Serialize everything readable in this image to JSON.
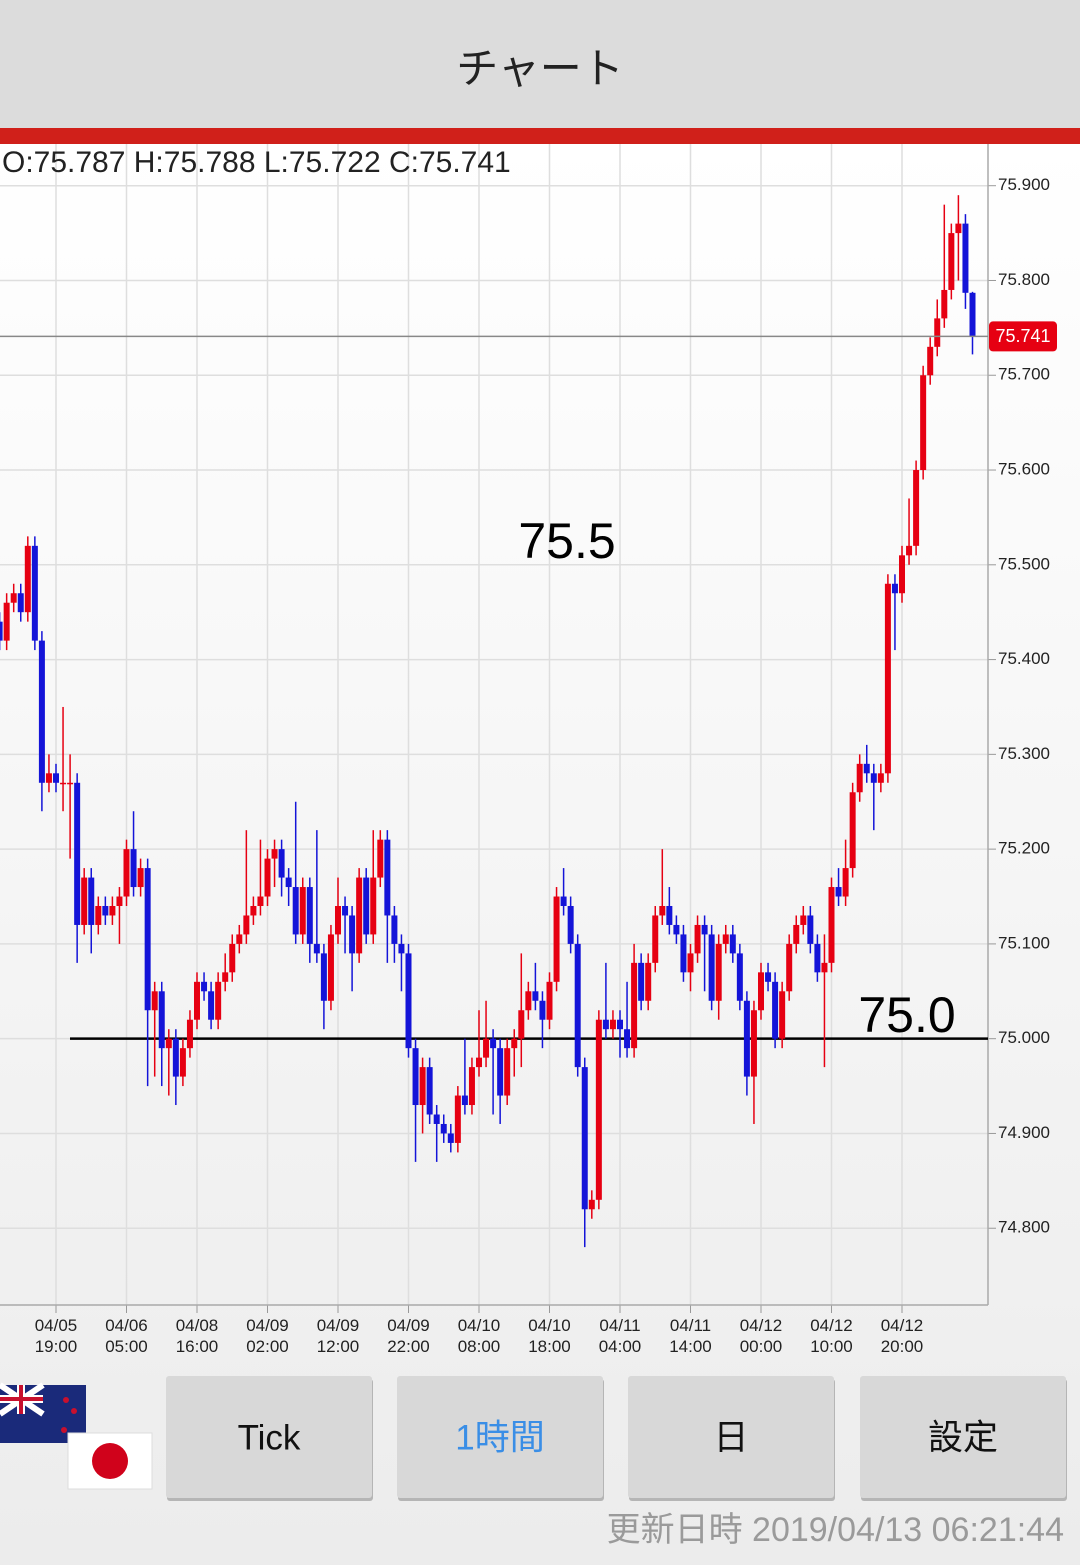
{
  "header": {
    "title": "チャート"
  },
  "chart_data": {
    "type": "candlestick",
    "info": "O:75.787 H:75.788 L:75.722 C:75.741",
    "xticks": [
      {
        "value": 8,
        "label": "04/05 19:00"
      },
      {
        "value": 18,
        "label": "04/06 05:00"
      },
      {
        "value": 28,
        "label": "04/08 16:00"
      },
      {
        "value": 38,
        "label": "04/09 02:00"
      },
      {
        "value": 48,
        "label": "04/09 12:00"
      },
      {
        "value": 58,
        "label": "04/09 22:00"
      },
      {
        "value": 68,
        "label": "04/10 08:00"
      },
      {
        "value": 78,
        "label": "04/10 18:00"
      },
      {
        "value": 88,
        "label": "04/11 04:00"
      },
      {
        "value": 98,
        "label": "04/11 14:00"
      },
      {
        "value": 108,
        "label": "04/12 00:00"
      },
      {
        "value": 118,
        "label": "04/12 10:00"
      },
      {
        "value": 128,
        "label": "04/12 20:00"
      }
    ],
    "open": [
      75.44,
      75.42,
      75.46,
      75.47,
      75.45,
      75.52,
      75.42,
      75.27,
      75.28,
      75.27,
      75.27,
      75.27,
      75.12,
      75.17,
      75.12,
      75.14,
      75.13,
      75.14,
      75.15,
      75.2,
      75.16,
      75.18,
      75.03,
      75.05,
      74.99,
      75.0,
      74.96,
      74.99,
      75.02,
      75.06,
      75.05,
      75.02,
      75.06,
      75.07,
      75.1,
      75.11,
      75.13,
      75.14,
      75.15,
      75.19,
      75.2,
      75.17,
      75.16,
      75.11,
      75.16,
      75.1,
      75.09,
      75.04,
      75.11,
      75.14,
      75.13,
      75.09,
      75.17,
      75.11,
      75.17,
      75.21,
      75.13,
      75.1,
      75.09,
      74.99,
      74.93,
      74.97,
      74.92,
      74.91,
      74.9,
      74.89,
      74.94,
      74.93,
      74.97,
      74.98,
      75.0,
      74.99,
      74.94,
      74.99,
      75.0,
      75.03,
      75.05,
      75.04,
      75.02,
      75.06,
      75.15,
      75.14,
      75.1,
      74.97,
      74.82,
      74.83,
      75.02,
      75.01,
      75.02,
      75.01,
      74.99,
      75.08,
      75.04,
      75.08,
      75.13,
      75.14,
      75.12,
      75.11,
      75.07,
      75.09,
      75.12,
      75.11,
      75.04,
      75.1,
      75.11,
      75.09,
      75.04,
      74.96,
      75.03,
      75.07,
      75.06,
      75.0,
      75.05,
      75.1,
      75.12,
      75.13,
      75.1,
      75.07,
      75.08,
      75.16,
      75.15,
      75.18,
      75.26,
      75.29,
      75.28,
      75.27,
      75.28,
      75.48,
      75.47,
      75.51,
      75.52,
      75.6,
      75.7,
      75.73,
      75.76,
      75.79,
      75.85,
      75.86,
      75.787
    ],
    "high": [
      75.45,
      75.47,
      75.48,
      75.48,
      75.53,
      75.53,
      75.43,
      75.3,
      75.29,
      75.35,
      75.3,
      75.28,
      75.18,
      75.18,
      75.15,
      75.15,
      75.15,
      75.16,
      75.21,
      75.24,
      75.19,
      75.19,
      75.06,
      75.06,
      75.01,
      75.01,
      75.0,
      75.03,
      75.07,
      75.07,
      75.06,
      75.07,
      75.09,
      75.11,
      75.12,
      75.22,
      75.15,
      75.21,
      75.2,
      75.21,
      75.21,
      75.18,
      75.25,
      75.17,
      75.17,
      75.22,
      75.1,
      75.12,
      75.17,
      75.15,
      75.14,
      75.18,
      75.18,
      75.22,
      75.22,
      75.22,
      75.14,
      75.11,
      75.1,
      75.0,
      74.98,
      74.98,
      74.93,
      74.92,
      74.91,
      74.95,
      75.0,
      74.98,
      75.03,
      75.04,
      75.01,
      75.0,
      75.0,
      75.01,
      75.09,
      75.06,
      75.08,
      75.05,
      75.07,
      75.16,
      75.18,
      75.15,
      75.11,
      74.98,
      74.84,
      75.03,
      75.08,
      75.03,
      75.03,
      75.06,
      75.1,
      75.09,
      75.09,
      75.14,
      75.2,
      75.16,
      75.13,
      75.12,
      75.1,
      75.13,
      75.13,
      75.12,
      75.11,
      75.12,
      75.12,
      75.1,
      75.05,
      75.04,
      75.08,
      75.08,
      75.07,
      75.06,
      75.11,
      75.13,
      75.14,
      75.14,
      75.11,
      75.11,
      75.17,
      75.18,
      75.21,
      75.27,
      75.3,
      75.31,
      75.29,
      75.29,
      75.49,
      75.49,
      75.52,
      75.57,
      75.61,
      75.71,
      75.74,
      75.78,
      75.88,
      75.86,
      75.89,
      75.87,
      75.788
    ],
    "low": [
      75.41,
      75.41,
      75.45,
      75.44,
      75.44,
      75.41,
      75.24,
      75.26,
      75.26,
      75.24,
      75.19,
      75.08,
      75.11,
      75.09,
      75.11,
      75.12,
      75.12,
      75.1,
      75.14,
      75.15,
      75.15,
      74.95,
      74.96,
      74.95,
      74.94,
      74.93,
      74.95,
      74.98,
      75.01,
      75.04,
      75.01,
      75.01,
      75.05,
      75.06,
      75.09,
      75.1,
      75.12,
      75.13,
      75.14,
      75.16,
      75.15,
      75.14,
      75.1,
      75.1,
      75.08,
      75.08,
      75.01,
      75.03,
      75.1,
      75.09,
      75.05,
      75.08,
      75.1,
      75.1,
      75.16,
      75.08,
      75.08,
      75.05,
      74.98,
      74.87,
      74.9,
      74.91,
      74.87,
      74.89,
      74.88,
      74.88,
      74.92,
      74.92,
      74.96,
      74.97,
      74.92,
      74.91,
      74.93,
      74.96,
      74.97,
      75.02,
      75.03,
      74.99,
      75.01,
      75.05,
      75.13,
      75.09,
      74.96,
      74.78,
      74.81,
      74.82,
      75.0,
      75.0,
      74.98,
      74.98,
      74.98,
      75.03,
      75.03,
      75.07,
      75.12,
      75.11,
      75.1,
      75.06,
      75.05,
      75.08,
      75.05,
      75.03,
      75.02,
      75.09,
      75.08,
      75.03,
      74.94,
      74.91,
      75.02,
      75.05,
      74.99,
      74.99,
      75.04,
      75.09,
      75.11,
      75.09,
      75.06,
      74.97,
      75.07,
      75.14,
      75.14,
      75.17,
      75.25,
      75.27,
      75.22,
      75.26,
      75.27,
      75.41,
      75.46,
      75.5,
      75.51,
      75.59,
      75.69,
      75.72,
      75.75,
      75.78,
      75.8,
      75.77,
      75.722
    ],
    "close": [
      75.42,
      75.46,
      75.47,
      75.45,
      75.52,
      75.42,
      75.27,
      75.28,
      75.27,
      75.27,
      75.27,
      75.12,
      75.17,
      75.12,
      75.14,
      75.13,
      75.14,
      75.15,
      75.2,
      75.16,
      75.18,
      75.03,
      75.05,
      74.99,
      75.0,
      74.96,
      74.99,
      75.02,
      75.06,
      75.05,
      75.02,
      75.06,
      75.07,
      75.1,
      75.11,
      75.13,
      75.14,
      75.15,
      75.19,
      75.2,
      75.17,
      75.16,
      75.11,
      75.16,
      75.1,
      75.09,
      75.04,
      75.11,
      75.14,
      75.13,
      75.09,
      75.17,
      75.11,
      75.17,
      75.21,
      75.13,
      75.1,
      75.09,
      74.99,
      74.93,
      74.97,
      74.92,
      74.91,
      74.9,
      74.89,
      74.94,
      74.93,
      74.97,
      74.98,
      75.0,
      74.99,
      74.94,
      74.99,
      75.0,
      75.03,
      75.05,
      75.04,
      75.02,
      75.06,
      75.15,
      75.14,
      75.1,
      74.97,
      74.82,
      74.83,
      75.02,
      75.01,
      75.02,
      75.01,
      74.99,
      75.08,
      75.04,
      75.08,
      75.13,
      75.14,
      75.12,
      75.11,
      75.07,
      75.09,
      75.12,
      75.11,
      75.04,
      75.1,
      75.11,
      75.09,
      75.04,
      74.96,
      75.03,
      75.07,
      75.06,
      75.0,
      75.05,
      75.1,
      75.12,
      75.13,
      75.1,
      75.07,
      75.08,
      75.16,
      75.15,
      75.18,
      75.26,
      75.29,
      75.28,
      75.27,
      75.28,
      75.48,
      75.47,
      75.51,
      75.52,
      75.6,
      75.7,
      75.73,
      75.76,
      75.79,
      75.85,
      75.86,
      75.787,
      75.741
    ],
    "up_color": "#e60012",
    "down_color": "#1414d8",
    "ylim": [
      74.719,
      75.944
    ],
    "yticks": [
      {
        "value": 74.8,
        "label": "74.800"
      },
      {
        "value": 74.9,
        "label": "74.900"
      },
      {
        "value": 75,
        "label": "75.000"
      },
      {
        "value": 75.1,
        "label": "75.100"
      },
      {
        "value": 75.2,
        "label": "75.200"
      },
      {
        "value": 75.3,
        "label": "75.300"
      },
      {
        "value": 75.4,
        "label": "75.400"
      },
      {
        "value": 75.5,
        "label": "75.500"
      },
      {
        "value": 75.6,
        "label": "75.600"
      },
      {
        "value": 75.7,
        "label": "75.700"
      },
      {
        "value": 75.8,
        "label": "75.800"
      },
      {
        "value": 75.9,
        "label": "75.900"
      }
    ],
    "grid": true,
    "hline": 75,
    "annotations": [
      {
        "text": "75.5",
        "value": 75.5
      },
      {
        "text": "75.0",
        "value": 75
      }
    ]
  },
  "buttons": [
    "Tick",
    "1時間",
    "日",
    "設定"
  ],
  "active_button": 1,
  "footer": "更新日時 2019/04/13 06:21:44"
}
